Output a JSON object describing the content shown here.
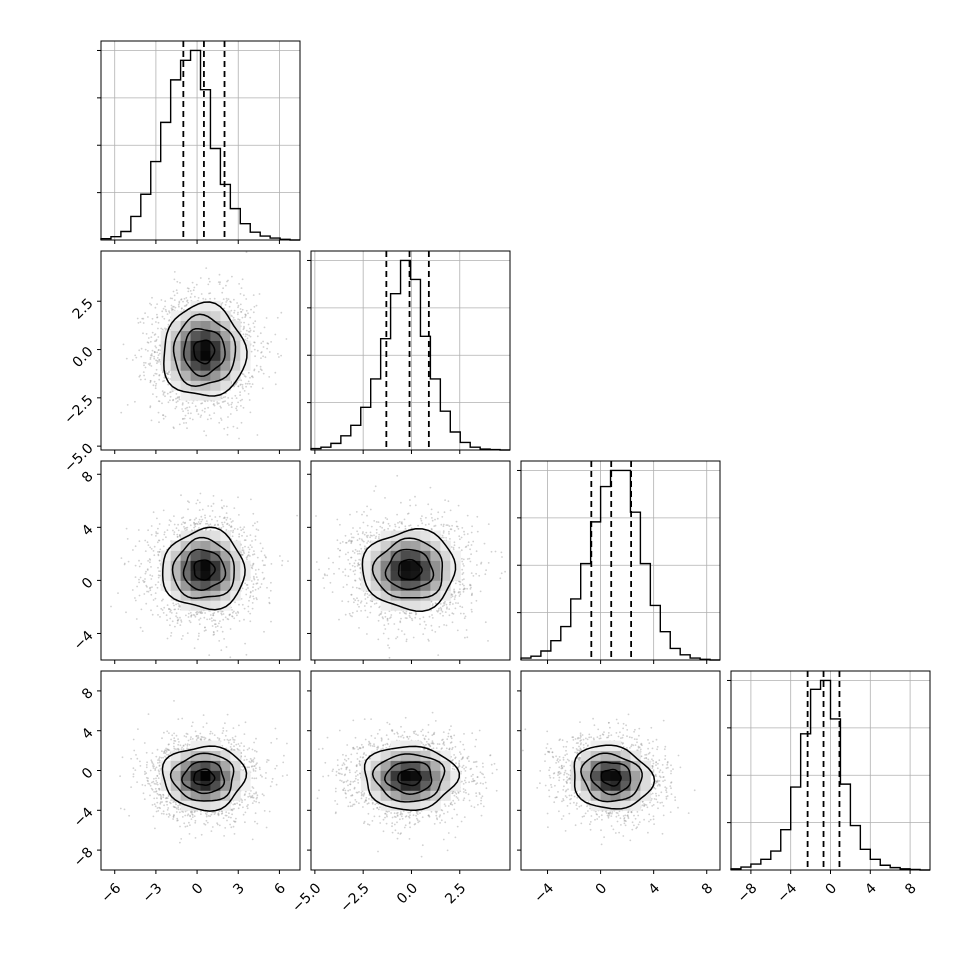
{
  "chart_data": {
    "type": "corner",
    "grid": true,
    "colors": {
      "line": "#000000",
      "grid": "#b0b0b0",
      "points": "#9a9a9a",
      "density_low": "#ffffff",
      "density_high": "#000000"
    },
    "variables": [
      {
        "range": [
          -7,
          7.5
        ],
        "ticks": [
          -6,
          -3,
          0,
          3,
          6
        ],
        "tick_labels": [
          "−6",
          "−3",
          "0",
          "3",
          "6"
        ],
        "mean": 0.5,
        "sigma": 1.5,
        "quantiles": [
          -1.0,
          0.5,
          2.0
        ]
      },
      {
        "range": [
          -5.2,
          5.1
        ],
        "ticks": [
          -5,
          -2.5,
          0,
          2.5
        ],
        "tick_labels": [
          "−5.0",
          "−2.5",
          "0.0",
          "2.5"
        ],
        "mean": -0.1,
        "sigma": 1.2,
        "quantiles": [
          -1.3,
          -0.1,
          0.9
        ]
      },
      {
        "range": [
          -6,
          9
        ],
        "ticks": [
          -4,
          0,
          4,
          8
        ],
        "tick_labels": [
          "−4",
          "0",
          "4",
          "8"
        ],
        "mean": 0.8,
        "sigma": 1.5,
        "quantiles": [
          -0.7,
          0.8,
          2.3
        ]
      },
      {
        "range": [
          -10,
          10
        ],
        "ticks": [
          -8,
          -4,
          0,
          4,
          8
        ],
        "tick_labels": [
          "−8",
          "−4",
          "0",
          "4",
          "8"
        ],
        "mean": -0.7,
        "sigma": 1.6,
        "quantiles": [
          -2.3,
          -0.7,
          0.9
        ]
      }
    ],
    "histograms": [
      {
        "variable": 0,
        "bins": 20,
        "counts": [
          2,
          5,
          13,
          36,
          70,
          120,
          180,
          245,
          275,
          290,
          230,
          140,
          85,
          48,
          25,
          12,
          6,
          3,
          1,
          0
        ]
      },
      {
        "variable": 1,
        "bins": 20,
        "counts": [
          3,
          6,
          14,
          30,
          52,
          90,
          150,
          235,
          330,
          400,
          360,
          240,
          150,
          82,
          38,
          16,
          6,
          2,
          1,
          0
        ]
      },
      {
        "variable": 2,
        "bins": 20,
        "counts": [
          3,
          6,
          14,
          30,
          52,
          95,
          150,
          215,
          270,
          295,
          295,
          230,
          150,
          85,
          44,
          18,
          8,
          3,
          1,
          0
        ]
      },
      {
        "variable": 3,
        "bins": 20,
        "counts": [
          2,
          5,
          10,
          18,
          32,
          68,
          140,
          230,
          305,
          320,
          255,
          145,
          75,
          35,
          18,
          8,
          4,
          2,
          1,
          0
        ]
      }
    ],
    "pairs": [
      {
        "x": 0,
        "y": 1,
        "corr": 0.0
      },
      {
        "x": 0,
        "y": 2,
        "corr": 0.0
      },
      {
        "x": 1,
        "y": 2,
        "corr": 0.0
      },
      {
        "x": 0,
        "y": 3,
        "corr": 0.0
      },
      {
        "x": 1,
        "y": 3,
        "corr": 0.0
      },
      {
        "x": 2,
        "y": 3,
        "corr": -0.1
      }
    ],
    "contour_levels_sigma": [
      0.5,
      1.0,
      1.5,
      2.0
    ]
  }
}
